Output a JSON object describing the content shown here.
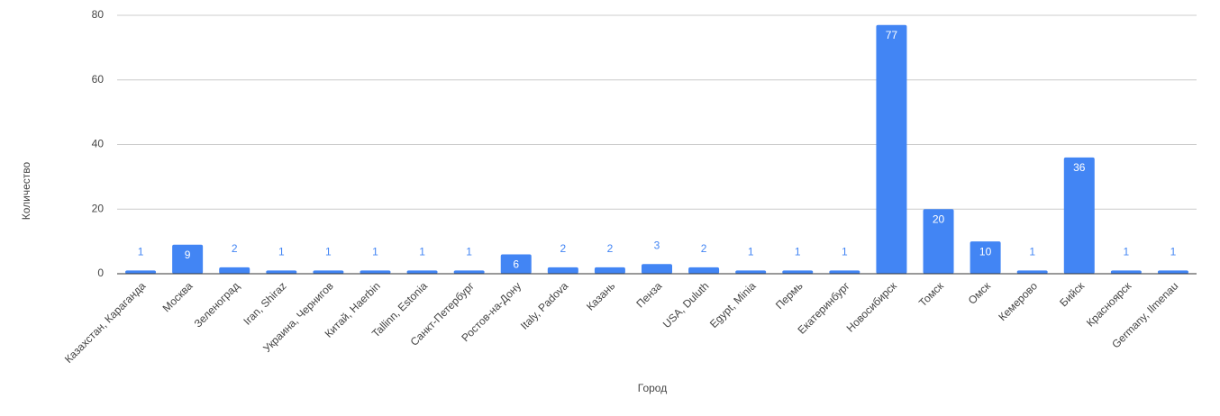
{
  "chart_data": {
    "type": "bar",
    "x_label": "Город",
    "y_label": "Количество",
    "categories": [
      "Казахстан, Караганда",
      "Москва",
      "Зеленоград",
      "Iran, Shiraz",
      "Украина, Чернигов",
      "Китай, Haerbin",
      "Tallinn, Estonia",
      "Санкт-Петербург",
      "Ростов-на-Дону",
      "Italy, Padova",
      "Казань",
      "Пенза",
      "USA, Duluth",
      "Egypt, Minia",
      "Пермь",
      "Екатеринбург",
      "Новосибирск",
      "Томск",
      "Омск",
      "Кемерово",
      "Бийск",
      "Красноярск",
      "Germany, Ilmenau"
    ],
    "values": [
      1,
      9,
      2,
      1,
      1,
      1,
      1,
      1,
      6,
      2,
      2,
      3,
      2,
      1,
      1,
      1,
      77,
      20,
      10,
      1,
      36,
      1,
      1
    ],
    "color": "#4285f4",
    "ylim": [
      0,
      80
    ],
    "yticks": [
      0,
      20,
      40,
      60,
      80
    ],
    "grid": true
  }
}
